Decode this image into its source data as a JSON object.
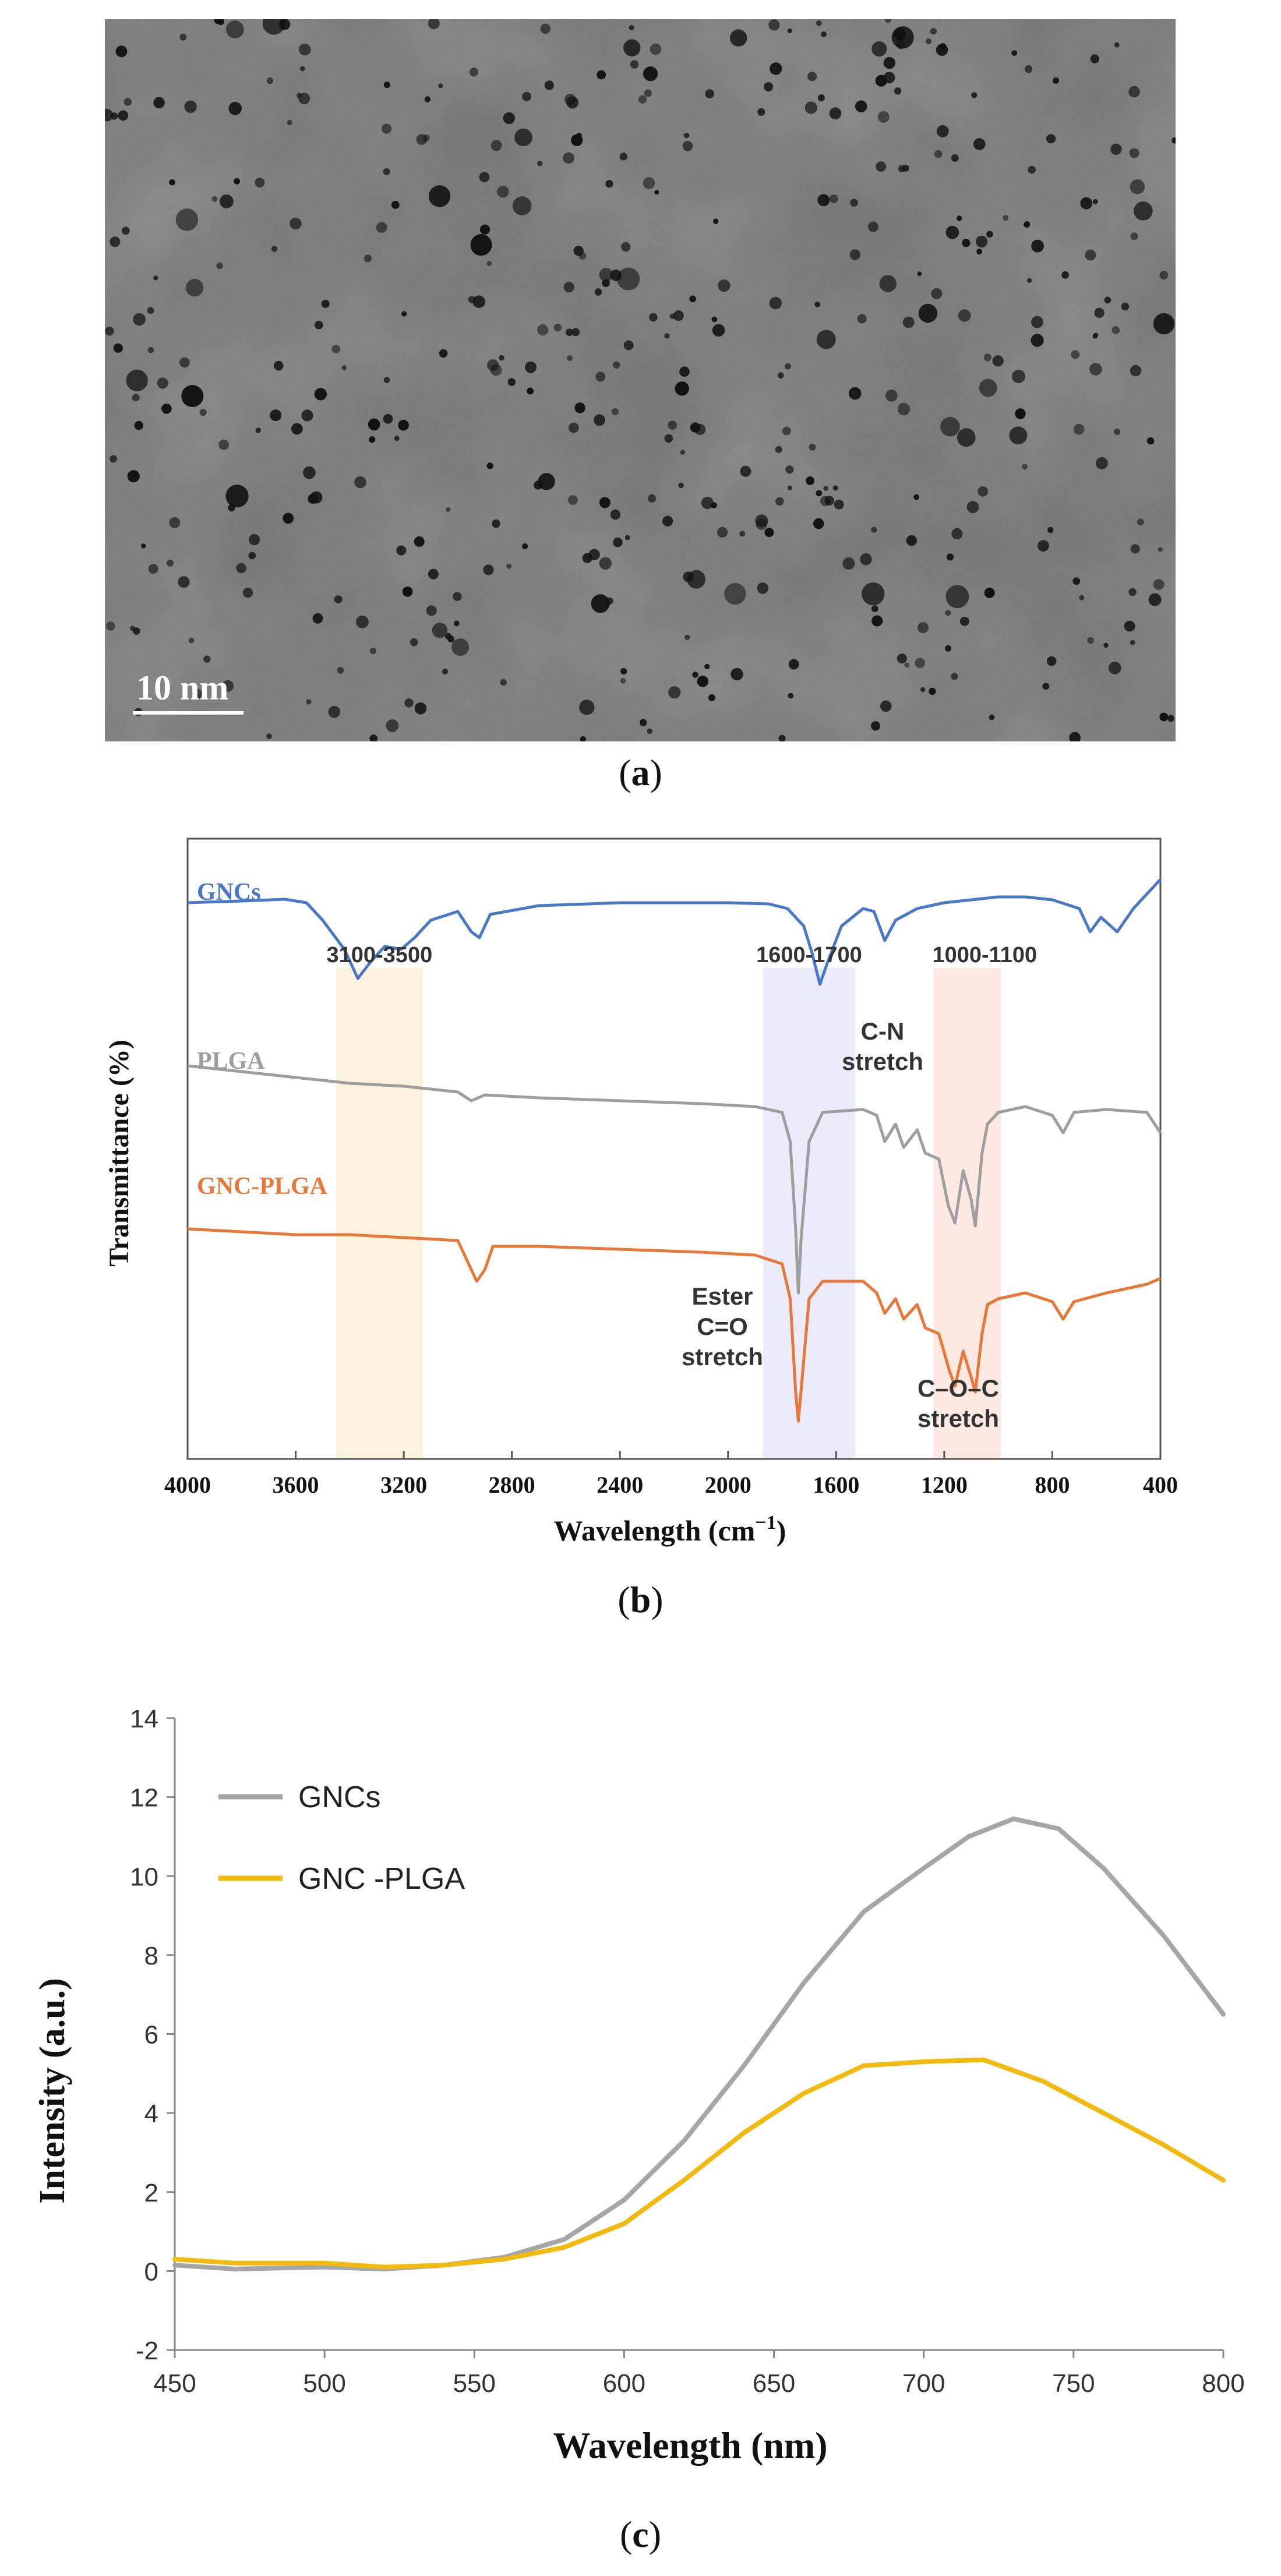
{
  "panels": {
    "a": {
      "label": "a",
      "scale_bar": "10 nm",
      "image_colors": {
        "background": "#7d7d7d",
        "particle": "#111111"
      }
    },
    "b": {
      "label": "b",
      "chart_data": {
        "type": "line",
        "title": "",
        "xlabel": "Wavelength (cm",
        "xlabel_sup": "−1",
        "xlabel_close": ")",
        "ylabel": "Transmittance (%)",
        "xlim": [
          4000,
          400
        ],
        "xticks": [
          4000,
          3600,
          3200,
          2800,
          2400,
          2000,
          1600,
          1200,
          800,
          400
        ],
        "yticks_shown": false,
        "bands": [
          {
            "label": "3100-3500",
            "range": [
              3450,
              3130
            ],
            "color": "#fdf2dc"
          },
          {
            "label": "1600-1700",
            "range": [
              1870,
              1530
            ],
            "color": "#ecebfa"
          },
          {
            "label": "1000-1100",
            "range": [
              1240,
              990
            ],
            "color": "#fde9e2"
          }
        ],
        "series": [
          {
            "name": "GNCs",
            "color": "#4a78c8",
            "points": [
              [
                4000,
                86.0
              ],
              [
                3800,
                86.3
              ],
              [
                3640,
                86.6
              ],
              [
                3560,
                86.0
              ],
              [
                3500,
                83.0
              ],
              [
                3420,
                78.0
              ],
              [
                3370,
                73.0
              ],
              [
                3320,
                76.0
              ],
              [
                3270,
                78.5
              ],
              [
                3210,
                78.0
              ],
              [
                3160,
                80.0
              ],
              [
                3100,
                83.0
              ],
              [
                3000,
                84.5
              ],
              [
                2950,
                81.0
              ],
              [
                2920,
                80.0
              ],
              [
                2880,
                84.0
              ],
              [
                2700,
                85.5
              ],
              [
                2400,
                86.0
              ],
              [
                2200,
                86.0
              ],
              [
                2000,
                86.0
              ],
              [
                1850,
                85.8
              ],
              [
                1780,
                85.0
              ],
              [
                1720,
                82.0
              ],
              [
                1690,
                77.5
              ],
              [
                1660,
                72.0
              ],
              [
                1630,
                76.0
              ],
              [
                1580,
                82.0
              ],
              [
                1500,
                85.0
              ],
              [
                1460,
                84.5
              ],
              [
                1420,
                79.5
              ],
              [
                1380,
                83.0
              ],
              [
                1300,
                85.0
              ],
              [
                1200,
                86.0
              ],
              [
                1100,
                86.5
              ],
              [
                1000,
                87.0
              ],
              [
                900,
                87.0
              ],
              [
                800,
                86.5
              ],
              [
                700,
                85.0
              ],
              [
                660,
                81.0
              ],
              [
                620,
                83.5
              ],
              [
                560,
                81.0
              ],
              [
                500,
                85.0
              ],
              [
                440,
                88.0
              ],
              [
                400,
                90.0
              ]
            ]
          },
          {
            "name": "PLGA",
            "color": "#9e9e9e",
            "points": [
              [
                4000,
                58.0
              ],
              [
                3800,
                57.0
              ],
              [
                3600,
                56.0
              ],
              [
                3400,
                55.0
              ],
              [
                3200,
                54.5
              ],
              [
                3000,
                53.5
              ],
              [
                2950,
                52.0
              ],
              [
                2900,
                53.0
              ],
              [
                2700,
                52.5
              ],
              [
                2400,
                52.0
              ],
              [
                2100,
                51.5
              ],
              [
                1900,
                51.0
              ],
              [
                1800,
                50.0
              ],
              [
                1770,
                45.0
              ],
              [
                1750,
                30.0
              ],
              [
                1740,
                19.0
              ],
              [
                1730,
                28.0
              ],
              [
                1700,
                45.0
              ],
              [
                1650,
                50.0
              ],
              [
                1500,
                50.5
              ],
              [
                1450,
                49.5
              ],
              [
                1420,
                45.0
              ],
              [
                1380,
                48.0
              ],
              [
                1350,
                44.0
              ],
              [
                1300,
                47.0
              ],
              [
                1270,
                43.0
              ],
              [
                1220,
                42.0
              ],
              [
                1185,
                34.0
              ],
              [
                1160,
                31.0
              ],
              [
                1130,
                40.0
              ],
              [
                1100,
                35.0
              ],
              [
                1085,
                30.5
              ],
              [
                1060,
                43.0
              ],
              [
                1040,
                48.0
              ],
              [
                1000,
                50.0
              ],
              [
                900,
                51.0
              ],
              [
                800,
                49.5
              ],
              [
                760,
                46.5
              ],
              [
                720,
                50.0
              ],
              [
                600,
                50.5
              ],
              [
                450,
                50.0
              ],
              [
                400,
                46.5
              ]
            ]
          },
          {
            "name": "GNC-PLGA",
            "color": "#e8783a",
            "points": [
              [
                4000,
                30.0
              ],
              [
                3800,
                29.5
              ],
              [
                3600,
                29.0
              ],
              [
                3400,
                29.0
              ],
              [
                3200,
                28.5
              ],
              [
                3000,
                28.0
              ],
              [
                2960,
                24.0
              ],
              [
                2930,
                21.0
              ],
              [
                2900,
                23.0
              ],
              [
                2870,
                27.0
              ],
              [
                2700,
                27.0
              ],
              [
                2400,
                26.5
              ],
              [
                2100,
                26.0
              ],
              [
                1900,
                25.5
              ],
              [
                1800,
                24.0
              ],
              [
                1770,
                18.0
              ],
              [
                1750,
                2.0
              ],
              [
                1740,
                -3.0
              ],
              [
                1730,
                2.0
              ],
              [
                1700,
                18.0
              ],
              [
                1650,
                21.0
              ],
              [
                1500,
                21.0
              ],
              [
                1450,
                19.0
              ],
              [
                1420,
                15.5
              ],
              [
                1380,
                18.0
              ],
              [
                1350,
                14.5
              ],
              [
                1300,
                17.0
              ],
              [
                1270,
                13.0
              ],
              [
                1220,
                12.0
              ],
              [
                1180,
                5.5
              ],
              [
                1160,
                3.0
              ],
              [
                1130,
                9.0
              ],
              [
                1100,
                4.5
              ],
              [
                1085,
                2.0
              ],
              [
                1060,
                12.0
              ],
              [
                1040,
                17.0
              ],
              [
                1000,
                18.0
              ],
              [
                900,
                19.0
              ],
              [
                800,
                17.5
              ],
              [
                760,
                14.5
              ],
              [
                720,
                17.5
              ],
              [
                600,
                19.0
              ],
              [
                450,
                20.5
              ],
              [
                400,
                21.5
              ]
            ]
          }
        ],
        "annotations": [
          {
            "id": "cn",
            "lines": [
              "C-N",
              "stretch"
            ]
          },
          {
            "id": "ester",
            "lines": [
              "Ester",
              "C=O",
              "stretch"
            ]
          },
          {
            "id": "coc",
            "lines": [
              "C–O–C",
              "stretch"
            ]
          }
        ]
      }
    },
    "c": {
      "label": "c",
      "chart_data": {
        "type": "line",
        "title": "",
        "xlabel": "Wavelength (nm)",
        "ylabel": "Intensity (a.u.)",
        "xlim": [
          450,
          800
        ],
        "ylim": [
          -2,
          14
        ],
        "xticks": [
          450,
          500,
          550,
          600,
          650,
          700,
          750,
          800
        ],
        "yticks": [
          -2,
          0,
          2,
          4,
          6,
          8,
          10,
          12,
          14
        ],
        "legend": "top-left",
        "series": [
          {
            "name": "GNCs",
            "color": "#a6a6a6",
            "points": [
              [
                450,
                0.15
              ],
              [
                470,
                0.05
              ],
              [
                500,
                0.1
              ],
              [
                520,
                0.05
              ],
              [
                540,
                0.15
              ],
              [
                560,
                0.35
              ],
              [
                580,
                0.8
              ],
              [
                600,
                1.8
              ],
              [
                620,
                3.3
              ],
              [
                640,
                5.2
              ],
              [
                660,
                7.3
              ],
              [
                680,
                9.1
              ],
              [
                700,
                10.2
              ],
              [
                715,
                11.0
              ],
              [
                730,
                11.45
              ],
              [
                745,
                11.2
              ],
              [
                760,
                10.2
              ],
              [
                780,
                8.5
              ],
              [
                800,
                6.5
              ]
            ]
          },
          {
            "name": "GNC -PLGA",
            "color": "#f2b90f",
            "points": [
              [
                450,
                0.3
              ],
              [
                470,
                0.2
              ],
              [
                500,
                0.2
              ],
              [
                520,
                0.1
              ],
              [
                540,
                0.15
              ],
              [
                560,
                0.3
              ],
              [
                580,
                0.6
              ],
              [
                600,
                1.2
              ],
              [
                620,
                2.3
              ],
              [
                640,
                3.5
              ],
              [
                660,
                4.5
              ],
              [
                680,
                5.2
              ],
              [
                700,
                5.3
              ],
              [
                720,
                5.35
              ],
              [
                740,
                4.8
              ],
              [
                760,
                4.0
              ],
              [
                780,
                3.2
              ],
              [
                800,
                2.3
              ]
            ]
          }
        ]
      }
    }
  }
}
